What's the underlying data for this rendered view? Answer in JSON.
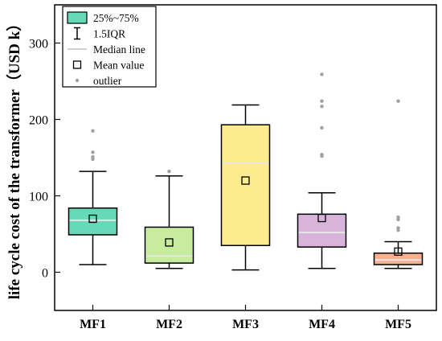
{
  "chart_data": {
    "type": "box",
    "ylabel": "life cycle cost of the transformer（USD k）",
    "xlabel": "",
    "ylim": [
      -50,
      350
    ],
    "yticks": [
      0,
      100,
      200,
      300
    ],
    "categories": [
      "MF1",
      "MF2",
      "MF3",
      "MF4",
      "MF5"
    ],
    "boxes": [
      {
        "category": "MF1",
        "whisker_low": 10,
        "q1": 49,
        "median": 68,
        "q3": 84,
        "whisker_high": 132,
        "mean": 70,
        "outliers": [
          148,
          151,
          157,
          185
        ],
        "color": "#66d9b8"
      },
      {
        "category": "MF2",
        "whisker_low": 5,
        "q1": 12,
        "median": 21,
        "q3": 59,
        "whisker_high": 126,
        "mean": 39,
        "outliers": [
          132
        ],
        "color": "#c8ec9e"
      },
      {
        "category": "MF3",
        "whisker_low": 3,
        "q1": 35,
        "median": 143,
        "q3": 193,
        "whisker_high": 219,
        "mean": 120,
        "outliers": [],
        "color": "#fdeb8e"
      },
      {
        "category": "MF4",
        "whisker_low": 5,
        "q1": 33,
        "median": 52,
        "q3": 76,
        "whisker_high": 104,
        "mean": 71,
        "outliers": [
          152,
          154,
          189,
          217,
          224,
          259
        ],
        "color": "#d9b3d9"
      },
      {
        "category": "MF5",
        "whisker_low": 5,
        "q1": 10,
        "median": 16,
        "q3": 25,
        "whisker_high": 40,
        "mean": 27,
        "outliers": [
          55,
          58,
          69,
          72,
          224
        ],
        "color": "#f8b08e"
      }
    ],
    "legend": {
      "position": "top-left",
      "entries": [
        {
          "key": "box",
          "label": "25%~75%"
        },
        {
          "key": "iqr",
          "label": "1.5IQR"
        },
        {
          "key": "median",
          "label": "Median line"
        },
        {
          "key": "mean",
          "label": "Mean value"
        },
        {
          "key": "outlier",
          "label": "outlier"
        }
      ]
    },
    "grid": false
  }
}
